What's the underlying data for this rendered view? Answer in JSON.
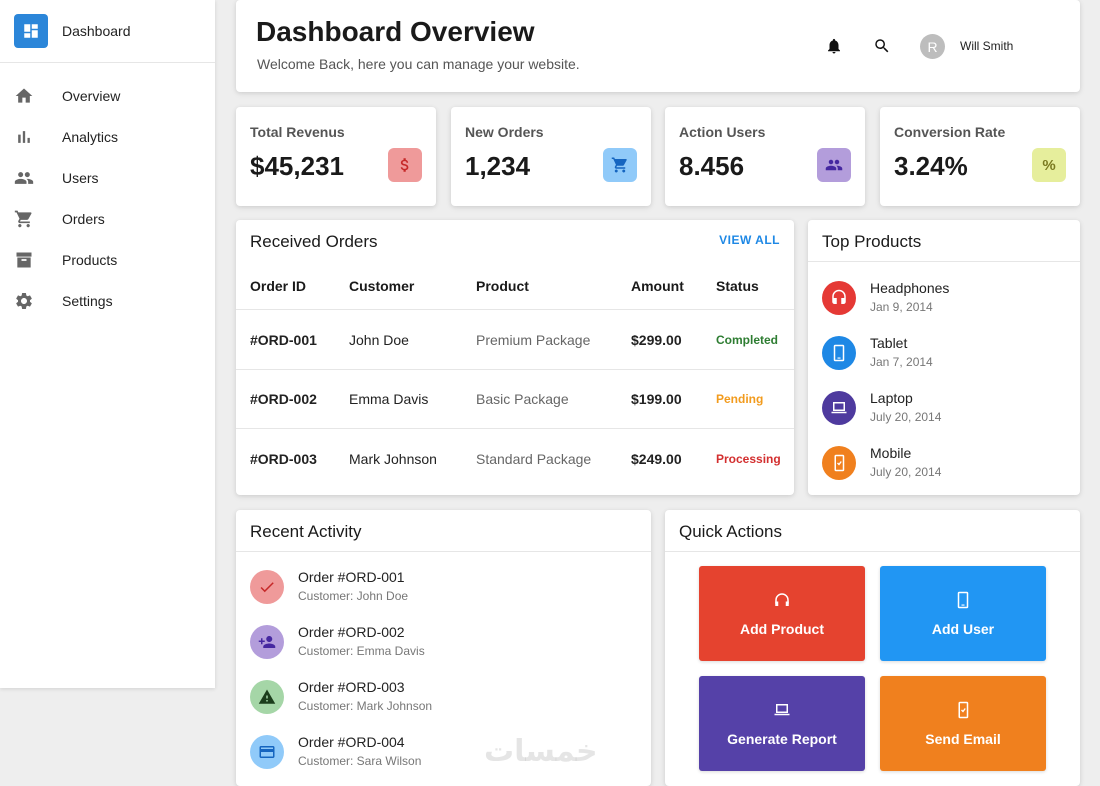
{
  "sidebar": {
    "brand": "Dashboard",
    "items": [
      {
        "label": "Overview",
        "icon": "home-icon"
      },
      {
        "label": "Analytics",
        "icon": "bar-chart-icon"
      },
      {
        "label": "Users",
        "icon": "users-icon"
      },
      {
        "label": "Orders",
        "icon": "cart-icon"
      },
      {
        "label": "Products",
        "icon": "archive-icon"
      },
      {
        "label": "Settings",
        "icon": "gear-icon"
      }
    ]
  },
  "header": {
    "title": "Dashboard Overview",
    "subtitle": "Welcome Back, here you can manage your website.",
    "avatar_initial": "R",
    "user_name": "Will Smith"
  },
  "stats": [
    {
      "label": "Total Revenus",
      "value": "$45,231",
      "icon": "dollar-icon",
      "color": "#ef9a9a"
    },
    {
      "label": "New Orders",
      "value": "1,234",
      "icon": "cart-icon",
      "color": "#90caf9"
    },
    {
      "label": "Action Users",
      "value": "8.456",
      "icon": "users-icon",
      "color": "#b39ddb"
    },
    {
      "label": "Conversion Rate",
      "value": "3.24%",
      "icon": "percent-icon",
      "color": "#e6ee9c"
    }
  ],
  "orders": {
    "title": "Received Orders",
    "view_all": "VIEW ALL",
    "columns": [
      "Order ID",
      "Customer",
      "Product",
      "Amount",
      "Status"
    ],
    "rows": [
      {
        "id": "#ORD-001",
        "customer": "John Doe",
        "product": "Premium Package",
        "amount": "$299.00",
        "status": "Completed",
        "status_color": "#2e7d32"
      },
      {
        "id": "#ORD-002",
        "customer": "Emma Davis",
        "product": "Basic Package",
        "amount": "$199.00",
        "status": "Pending",
        "status_color": "#f29b1d"
      },
      {
        "id": "#ORD-003",
        "customer": "Mark Johnson",
        "product": "Standard Package",
        "amount": "$249.00",
        "status": "Processing",
        "status_color": "#d32f2f"
      }
    ]
  },
  "top_products": {
    "title": "Top Products",
    "items": [
      {
        "name": "Headphones",
        "date": "Jan 9, 2014",
        "icon": "headphones-icon",
        "color": "#e53935"
      },
      {
        "name": "Tablet",
        "date": "Jan 7, 2014",
        "icon": "tablet-icon",
        "color": "#1e88e5"
      },
      {
        "name": "Laptop",
        "date": "July 20, 2014",
        "icon": "laptop-icon",
        "color": "#4e3a9e"
      },
      {
        "name": "Mobile",
        "date": "July 20, 2014",
        "icon": "mobile-icon",
        "color": "#f0801e"
      }
    ]
  },
  "activity": {
    "title": "Recent Activity",
    "items": [
      {
        "title": "Order #ORD-001",
        "sub": "Customer: John Doe",
        "icon": "check-icon",
        "color": "#ef9a9a"
      },
      {
        "title": "Order #ORD-002",
        "sub": "Customer: Emma Davis",
        "icon": "add-user-icon",
        "color": "#b39ddb"
      },
      {
        "title": "Order #ORD-003",
        "sub": "Customer: Mark Johnson",
        "icon": "warning-icon",
        "color": "#a5d6a7"
      },
      {
        "title": "Order #ORD-004",
        "sub": "Customer: Sara Wilson",
        "icon": "credit-card-icon",
        "color": "#90caf9"
      }
    ]
  },
  "quick_actions": {
    "title": "Quick Actions",
    "buttons": [
      {
        "label": "Add Product",
        "icon": "headphones-icon",
        "color": "#e5432f"
      },
      {
        "label": "Add User",
        "icon": "tablet-icon",
        "color": "#2196f3"
      },
      {
        "label": "Generate Report",
        "icon": "laptop-icon",
        "color": "#5541a8"
      },
      {
        "label": "Send Email",
        "icon": "mobile-icon",
        "color": "#f0801e"
      }
    ]
  },
  "watermark": "خمسات"
}
